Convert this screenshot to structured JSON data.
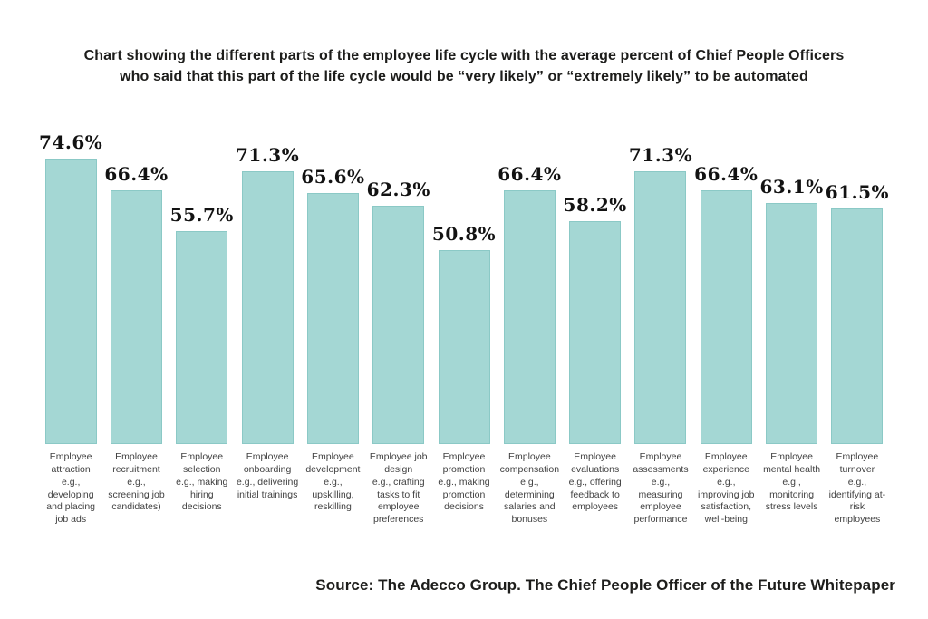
{
  "title": {
    "line1": "Chart showing the different parts of the employee life cycle with the average percent of Chief People Officers",
    "line2": "who said that this part of the life cycle would be “very likely” or “extremely likely” to be automated"
  },
  "source": "Source: The Adecco Group. The Chief People Officer of the Future Whitepaper",
  "colors": {
    "bar_fill": "#a4d7d4",
    "bar_border": "#8bc9c6",
    "text_dark": "#1d1d1b",
    "label_gray": "#414141"
  },
  "chart_data": {
    "type": "bar",
    "title": "Chart showing the different parts of the employee life cycle with the average percent of Chief People Officers who said that this part of the life cycle would be “very likely” or “extremely likely” to be automated",
    "xlabel": "",
    "ylabel": "",
    "unit": "%",
    "ylim": [
      0,
      80
    ],
    "grid": false,
    "legend": "none",
    "value_labels_shown": true,
    "categories": [
      "Employee attraction",
      "Employee recruitment",
      "Employee selection",
      "Employee onboarding",
      "Employee development",
      "Employee job design",
      "Employee promotion",
      "Employee compensation",
      "Employee evaluations",
      "Employee assessments",
      "Employee experience",
      "Employee mental health",
      "Employee turnover"
    ],
    "examples": [
      "e.g., developing and placing job ads",
      "e.g., screening job candidates)",
      "e.g., making hiring decisions",
      "e.g., delivering initial trainings",
      "e.g., upskilling, reskilling",
      "e.g., crafting tasks to fit employee preferences",
      "e.g., making promotion decisions",
      "e.g., determining salaries and bonuses",
      "e.g., offering feedback to employees",
      "e.g., measuring employee performance",
      "e.g., improving job satisfaction, well-being",
      "e.g., monitoring stress levels",
      "e.g., identifying at-risk employees"
    ],
    "values": [
      74.6,
      66.4,
      55.7,
      71.3,
      65.6,
      62.3,
      50.8,
      66.4,
      58.2,
      71.3,
      66.4,
      63.1,
      61.5
    ],
    "value_labels": [
      "74.6%",
      "66.4%",
      "55.7%",
      "71.3%",
      "65.6%",
      "62.3%",
      "50.8%",
      "66.4%",
      "58.2%",
      "71.3%",
      "66.4%",
      "63.1%",
      "61.5%"
    ]
  }
}
